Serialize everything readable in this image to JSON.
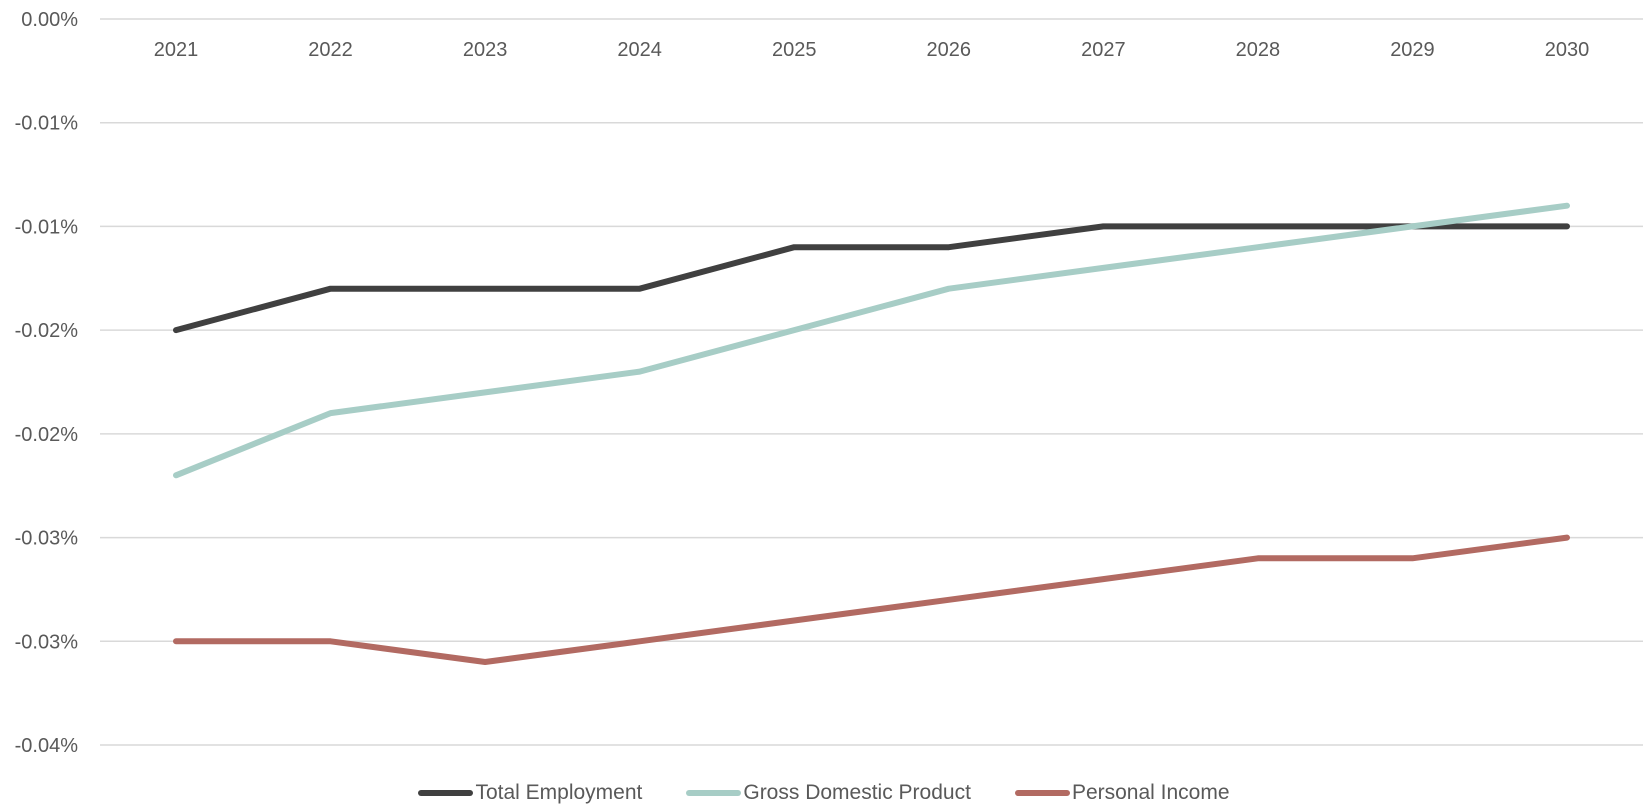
{
  "chart_data": {
    "type": "line",
    "title": "",
    "xlabel": "",
    "ylabel": "",
    "x": [
      "2021",
      "2022",
      "2023",
      "2024",
      "2025",
      "2026",
      "2027",
      "2028",
      "2029",
      "2030"
    ],
    "y_tick_labels": [
      "0.00%",
      "-0.01%",
      "-0.01%",
      "-0.02%",
      "-0.02%",
      "-0.03%",
      "-0.03%",
      "-0.04%"
    ],
    "y_tick_values": [
      0,
      -0.005,
      -0.01,
      -0.015,
      -0.02,
      -0.025,
      -0.03,
      -0.035
    ],
    "ylim": [
      -0.035,
      0
    ],
    "grid": true,
    "legend_position": "bottom",
    "series": [
      {
        "name": "Total Employment",
        "color": "#404040",
        "values": [
          -0.015,
          -0.013,
          -0.013,
          -0.013,
          -0.011,
          -0.011,
          -0.01,
          -0.01,
          -0.01,
          -0.01
        ]
      },
      {
        "name": "Gross Domestic Product",
        "color": "#a7cdc6",
        "values": [
          -0.022,
          -0.019,
          -0.018,
          -0.017,
          -0.015,
          -0.013,
          -0.012,
          -0.011,
          -0.01,
          -0.009
        ]
      },
      {
        "name": "Personal Income",
        "color": "#b26a62",
        "values": [
          -0.03,
          -0.03,
          -0.031,
          -0.03,
          -0.029,
          -0.028,
          -0.027,
          -0.026,
          -0.026,
          -0.025
        ]
      }
    ]
  }
}
